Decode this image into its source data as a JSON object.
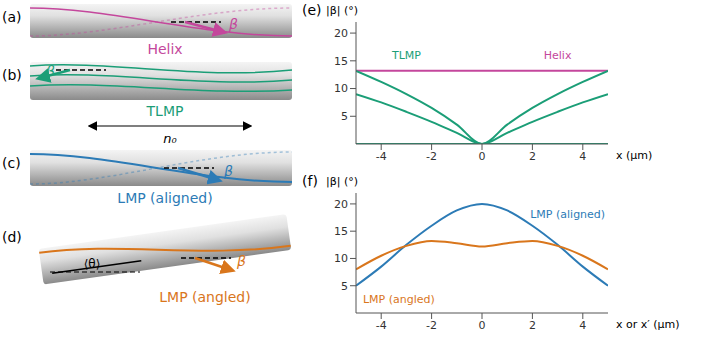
{
  "diagrams": {
    "beta": "β",
    "director": "n₀",
    "mean_angle": "⟨θ⟩",
    "panels": [
      {
        "letter": "(a)",
        "label": "Helix",
        "color": "#c4479c"
      },
      {
        "letter": "(b)",
        "label": "TLMP",
        "color": "#1b9e77"
      },
      {
        "letter": "(c)",
        "label": "LMP (aligned)",
        "color": "#2c7bb6"
      },
      {
        "letter": "(d)",
        "label": "LMP (angled)",
        "color": "#d9761c"
      }
    ]
  },
  "chart_data": [
    {
      "type": "line",
      "letter": "(e)",
      "x_label": "x (μm)",
      "y_label": "|β| (°)",
      "x": [
        -5,
        -4,
        -3,
        -2,
        -1,
        0,
        1,
        2,
        3,
        4,
        5
      ],
      "xlim": [
        -5,
        5
      ],
      "xticks": [
        -4,
        -2,
        0,
        2,
        4
      ],
      "ylim": [
        0,
        22
      ],
      "yticks": [
        5,
        10,
        15,
        20
      ],
      "series": [
        {
          "name": "Helix",
          "color": "#c4479c",
          "values": [
            13.2,
            13.2,
            13.2,
            13.2,
            13.2,
            13.2,
            13.2,
            13.2,
            13.2,
            13.2,
            13.2
          ]
        },
        {
          "name": "TLMP",
          "color": "#1b9e77",
          "values": [
            13.2,
            11.2,
            9,
            6.5,
            3.5,
            0,
            3.5,
            6.5,
            9,
            11.2,
            13.2
          ]
        },
        {
          "name": "TLMP",
          "color": "#1b9e77",
          "values": [
            9,
            7.5,
            5.8,
            4,
            2,
            0,
            2,
            4,
            5.8,
            7.5,
            9
          ]
        },
        {
          "name": "TLMP",
          "color": "#1b9e77",
          "values": [
            0,
            0,
            0,
            0,
            0,
            0,
            0,
            0,
            0,
            0,
            0
          ]
        }
      ],
      "annotations": [
        {
          "text": "Helix",
          "x": 3,
          "y": 16,
          "color": "#c4479c"
        },
        {
          "text": "TLMP",
          "x": -3,
          "y": 16,
          "color": "#1b9e77"
        }
      ]
    },
    {
      "type": "line",
      "letter": "(f)",
      "x_label": "x or x′ (μm)",
      "y_label": "|β| (°)",
      "x": [
        -5,
        -4,
        -3,
        -2,
        -1,
        0,
        1,
        2,
        3,
        4,
        5
      ],
      "xlim": [
        -5,
        5
      ],
      "xticks": [
        -4,
        -2,
        0,
        2,
        4
      ],
      "ylim": [
        0,
        22
      ],
      "yticks": [
        5,
        10,
        15,
        20
      ],
      "series": [
        {
          "name": "LMP (aligned)",
          "color": "#2c7bb6",
          "values": [
            5,
            8.5,
            12.5,
            16,
            18.8,
            20,
            18.8,
            16,
            12.5,
            8.5,
            5
          ]
        },
        {
          "name": "LMP (angled)",
          "color": "#d9761c",
          "values": [
            8,
            10.5,
            12.3,
            13.2,
            12.8,
            12.2,
            12.8,
            13.2,
            12.3,
            10.5,
            8
          ]
        }
      ],
      "annotations": [
        {
          "text": "LMP (aligned)",
          "x": 3.4,
          "y": 18.2,
          "color": "#2c7bb6"
        },
        {
          "text": "LMP (angled)",
          "x": -3.3,
          "y": 2.6,
          "color": "#d9761c"
        }
      ]
    }
  ]
}
